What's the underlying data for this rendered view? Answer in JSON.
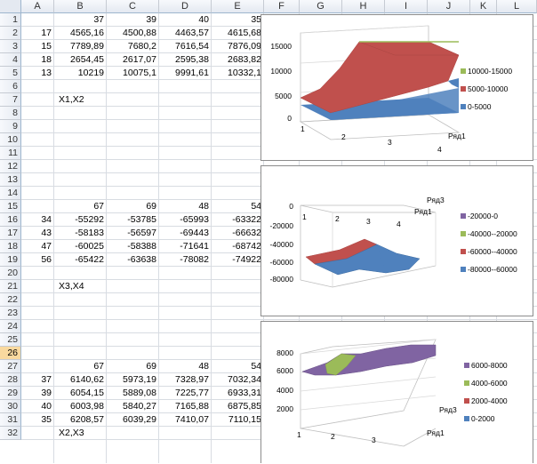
{
  "columns": [
    "A",
    "B",
    "C",
    "D",
    "E",
    "F",
    "G",
    "H",
    "I",
    "J",
    "K",
    "L"
  ],
  "selected_row": "26",
  "rows": [
    "1",
    "2",
    "3",
    "4",
    "5",
    "6",
    "7",
    "8",
    "9",
    "10",
    "11",
    "12",
    "13",
    "14",
    "15",
    "16",
    "17",
    "18",
    "19",
    "20",
    "21",
    "22",
    "23",
    "24",
    "25",
    "26",
    "27",
    "28",
    "29",
    "30",
    "31",
    "32"
  ],
  "block1": {
    "header": [
      "37",
      "39",
      "40",
      "35"
    ],
    "rows": [
      {
        "a": "17",
        "v": [
          "4565,16",
          "4500,88",
          "4463,57",
          "4615,68"
        ]
      },
      {
        "a": "15",
        "v": [
          "7789,89",
          "7680,2",
          "7616,54",
          "7876,09"
        ]
      },
      {
        "a": "18",
        "v": [
          "2654,45",
          "2617,07",
          "2595,38",
          "2683,82"
        ]
      },
      {
        "a": "13",
        "v": [
          "10219",
          "10075,1",
          "9991,61",
          "10332,1"
        ]
      }
    ],
    "label": "X1,X2"
  },
  "block2": {
    "header": [
      "67",
      "69",
      "48",
      "54"
    ],
    "rows": [
      {
        "a": "34",
        "v": [
          "-55292",
          "-53785",
          "-65993",
          "-63322"
        ]
      },
      {
        "a": "43",
        "v": [
          "-58183",
          "-56597",
          "-69443",
          "-66632"
        ]
      },
      {
        "a": "47",
        "v": [
          "-60025",
          "-58388",
          "-71641",
          "-68742"
        ]
      },
      {
        "a": "56",
        "v": [
          "-65422",
          "-63638",
          "-78082",
          "-74922"
        ]
      }
    ],
    "label": "X3,X4"
  },
  "block3": {
    "header": [
      "67",
      "69",
      "48",
      "54"
    ],
    "rows": [
      {
        "a": "37",
        "v": [
          "6140,62",
          "5973,19",
          "7328,97",
          "7032,34"
        ]
      },
      {
        "a": "39",
        "v": [
          "6054,15",
          "5889,08",
          "7225,77",
          "6933,31"
        ]
      },
      {
        "a": "40",
        "v": [
          "6003,98",
          "5840,27",
          "7165,88",
          "6875,85"
        ]
      },
      {
        "a": "35",
        "v": [
          "6208,57",
          "6039,29",
          "7410,07",
          "7110,15"
        ]
      }
    ],
    "label": "X2,X3"
  },
  "chart1": {
    "yticks": [
      "15000",
      "10000",
      "5000",
      "0"
    ],
    "xticks": [
      "1",
      "2",
      "3",
      "4"
    ],
    "series_label": "Ряд1",
    "legend": [
      {
        "label": "10000-15000",
        "color": "#9bbb59"
      },
      {
        "label": "5000-10000",
        "color": "#c0504d"
      },
      {
        "label": "0-5000",
        "color": "#4f81bd"
      }
    ]
  },
  "chart2": {
    "yticks": [
      "0",
      "-20000",
      "-40000",
      "-60000",
      "-80000"
    ],
    "xticks": [
      "1",
      "2",
      "3",
      "4"
    ],
    "series_label_1": "Ряд3",
    "series_label_2": "Ряд1",
    "legend": [
      {
        "label": "-20000-0",
        "color": "#8064a2"
      },
      {
        "label": "-40000--20000",
        "color": "#9bbb59"
      },
      {
        "label": "-60000--40000",
        "color": "#c0504d"
      },
      {
        "label": "-80000--60000",
        "color": "#4f81bd"
      }
    ]
  },
  "chart3": {
    "yticks": [
      "8000",
      "6000",
      "4000",
      "2000"
    ],
    "xticks": [
      "1",
      "2",
      "3"
    ],
    "series_label_1": "Ряд3",
    "series_label_2": "Ряд1",
    "legend": [
      {
        "label": "6000-8000",
        "color": "#8064a2"
      },
      {
        "label": "4000-6000",
        "color": "#9bbb59"
      },
      {
        "label": "2000-4000",
        "color": "#c0504d"
      },
      {
        "label": "0-2000",
        "color": "#4f81bd"
      }
    ]
  }
}
